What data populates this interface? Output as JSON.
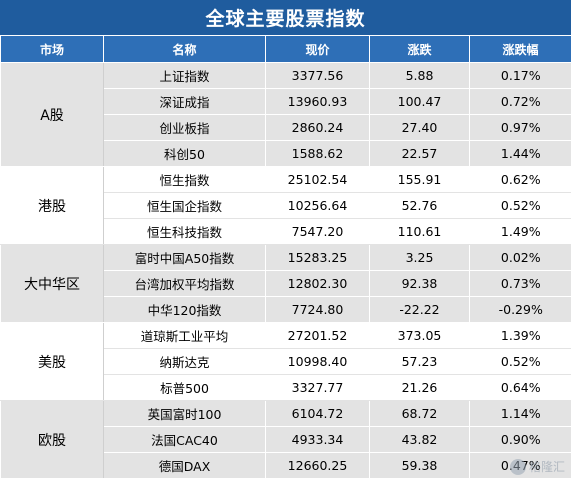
{
  "title": "全球主要股票指数",
  "headers": [
    "市场",
    "名称",
    "现价",
    "涨跌",
    "涨跌幅"
  ],
  "groups": [
    {
      "market": "A股",
      "rows": [
        {
          "name": "上证指数",
          "price": "3377.56",
          "change": "5.88",
          "pct": "0.17%"
        },
        {
          "name": "深证成指",
          "price": "13960.93",
          "change": "100.47",
          "pct": "0.72%"
        },
        {
          "name": "创业板指",
          "price": "2860.24",
          "change": "27.40",
          "pct": "0.97%"
        },
        {
          "name": "科创50",
          "price": "1588.62",
          "change": "22.57",
          "pct": "1.44%"
        }
      ]
    },
    {
      "market": "港股",
      "rows": [
        {
          "name": "恒生指数",
          "price": "25102.54",
          "change": "155.91",
          "pct": "0.62%"
        },
        {
          "name": "恒生国企指数",
          "price": "10256.64",
          "change": "52.76",
          "pct": "0.52%"
        },
        {
          "name": "恒生科技指数",
          "price": "7547.20",
          "change": "110.61",
          "pct": "1.49%"
        }
      ]
    },
    {
      "market": "大中华区",
      "rows": [
        {
          "name": "富时中国A50指数",
          "price": "15283.25",
          "change": "3.25",
          "pct": "0.02%"
        },
        {
          "name": "台湾加权平均指数",
          "price": "12802.30",
          "change": "92.38",
          "pct": "0.73%"
        },
        {
          "name": "中华120指数",
          "price": "7724.80",
          "change": "-22.22",
          "pct": "-0.29%"
        }
      ]
    },
    {
      "market": "美股",
      "rows": [
        {
          "name": "道琼斯工业平均",
          "price": "27201.52",
          "change": "373.05",
          "pct": "1.39%"
        },
        {
          "name": "纳斯达克",
          "price": "10998.40",
          "change": "57.23",
          "pct": "0.52%"
        },
        {
          "name": "标普500",
          "price": "3327.77",
          "change": "21.26",
          "pct": "0.64%"
        }
      ]
    },
    {
      "market": "欧股",
      "rows": [
        {
          "name": "英国富时100",
          "price": "6104.72",
          "change": "68.72",
          "pct": "1.14%"
        },
        {
          "name": "法国CAC40",
          "price": "4933.34",
          "change": "43.82",
          "pct": "0.90%"
        },
        {
          "name": "德国DAX",
          "price": "12660.25",
          "change": "59.38",
          "pct": "0.47%"
        }
      ]
    }
  ],
  "watermark": {
    "text": "格隆汇",
    "icon": "gelonghui-logo-icon"
  },
  "colors": {
    "title_bg": "#1f5c9e",
    "header_bg": "#2e6fb7",
    "band_gray": "#e3e3e3"
  }
}
